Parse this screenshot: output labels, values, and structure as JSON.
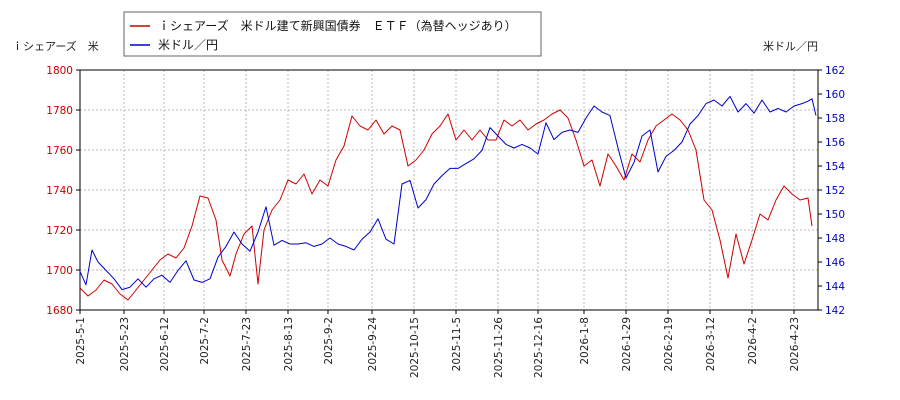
{
  "chart_data": {
    "type": "line",
    "left_axis_label": "ｉシェアーズ　米",
    "right_axis_label": "米ドル／円",
    "y_left": {
      "min": 1680,
      "max": 1800,
      "ticks": [
        1680,
        1700,
        1720,
        1740,
        1760,
        1780,
        1800
      ],
      "color": "#cc0000"
    },
    "y_right": {
      "min": 142,
      "max": 162,
      "ticks": [
        142,
        144,
        146,
        148,
        150,
        152,
        154,
        156,
        158,
        160,
        162
      ],
      "color": "#0000cc"
    },
    "x_range": [
      "2025-05-01",
      "2026-05-05"
    ],
    "x_ticks": [
      "2025-5-1",
      "2025-5-23",
      "2025-6-12",
      "2025-7-2",
      "2025-7-23",
      "2025-8-13",
      "2025-9-2",
      "2025-9-24",
      "2025-10-15",
      "2025-11-5",
      "2025-11-26",
      "2025-12-16",
      "2026-1-8",
      "2026-1-29",
      "2026-2-19",
      "2026-3-12",
      "2026-4-2",
      "2026-4-23"
    ],
    "grid": true,
    "legend_position": "top",
    "series": [
      {
        "name": "ｉシェアーズ　米ドル建て新興国債券　ＥＴＦ（為替ヘッジあり）",
        "axis": "left",
        "color": "#cc0000",
        "points": [
          [
            "2025-05-01",
            1691
          ],
          [
            "2025-05-05",
            1687
          ],
          [
            "2025-05-09",
            1690
          ],
          [
            "2025-05-13",
            1695
          ],
          [
            "2025-05-17",
            1693
          ],
          [
            "2025-05-21",
            1688
          ],
          [
            "2025-05-25",
            1685
          ],
          [
            "2025-05-29",
            1690
          ],
          [
            "2025-06-02",
            1695
          ],
          [
            "2025-06-06",
            1700
          ],
          [
            "2025-06-10",
            1705
          ],
          [
            "2025-06-14",
            1708
          ],
          [
            "2025-06-18",
            1706
          ],
          [
            "2025-06-22",
            1711
          ],
          [
            "2025-06-26",
            1722
          ],
          [
            "2025-06-30",
            1737
          ],
          [
            "2025-07-04",
            1736
          ],
          [
            "2025-07-08",
            1725
          ],
          [
            "2025-07-11",
            1705
          ],
          [
            "2025-07-15",
            1697
          ],
          [
            "2025-07-18",
            1708
          ],
          [
            "2025-07-22",
            1718
          ],
          [
            "2025-07-26",
            1722
          ],
          [
            "2025-07-29",
            1693
          ],
          [
            "2025-08-01",
            1720
          ],
          [
            "2025-08-05",
            1730
          ],
          [
            "2025-08-09",
            1735
          ],
          [
            "2025-08-13",
            1745
          ],
          [
            "2025-08-17",
            1743
          ],
          [
            "2025-08-21",
            1748
          ],
          [
            "2025-08-25",
            1738
          ],
          [
            "2025-08-29",
            1745
          ],
          [
            "2025-09-02",
            1742
          ],
          [
            "2025-09-06",
            1755
          ],
          [
            "2025-09-10",
            1762
          ],
          [
            "2025-09-14",
            1777
          ],
          [
            "2025-09-18",
            1772
          ],
          [
            "2025-09-22",
            1770
          ],
          [
            "2025-09-26",
            1775
          ],
          [
            "2025-09-30",
            1768
          ],
          [
            "2025-10-04",
            1772
          ],
          [
            "2025-10-08",
            1770
          ],
          [
            "2025-10-12",
            1752
          ],
          [
            "2025-10-16",
            1755
          ],
          [
            "2025-10-20",
            1760
          ],
          [
            "2025-10-24",
            1768
          ],
          [
            "2025-10-28",
            1772
          ],
          [
            "2025-11-01",
            1778
          ],
          [
            "2025-11-05",
            1765
          ],
          [
            "2025-11-09",
            1770
          ],
          [
            "2025-11-13",
            1765
          ],
          [
            "2025-11-17",
            1770
          ],
          [
            "2025-11-21",
            1765
          ],
          [
            "2025-11-25",
            1765
          ],
          [
            "2025-11-29",
            1775
          ],
          [
            "2025-12-03",
            1772
          ],
          [
            "2025-12-07",
            1775
          ],
          [
            "2025-12-11",
            1770
          ],
          [
            "2025-12-15",
            1773
          ],
          [
            "2025-12-19",
            1775
          ],
          [
            "2025-12-23",
            1778
          ],
          [
            "2025-12-27",
            1780
          ],
          [
            "2025-12-31",
            1776
          ],
          [
            "2026-01-04",
            1765
          ],
          [
            "2026-01-08",
            1752
          ],
          [
            "2026-01-12",
            1755
          ],
          [
            "2026-01-16",
            1742
          ],
          [
            "2026-01-20",
            1758
          ],
          [
            "2026-01-24",
            1752
          ],
          [
            "2026-01-28",
            1745
          ],
          [
            "2026-02-01",
            1758
          ],
          [
            "2026-02-05",
            1754
          ],
          [
            "2026-02-09",
            1765
          ],
          [
            "2026-02-13",
            1772
          ],
          [
            "2026-02-17",
            1775
          ],
          [
            "2026-02-21",
            1778
          ],
          [
            "2026-02-25",
            1775
          ],
          [
            "2026-03-01",
            1770
          ],
          [
            "2026-03-05",
            1760
          ],
          [
            "2026-03-09",
            1735
          ],
          [
            "2026-03-13",
            1730
          ],
          [
            "2026-03-17",
            1715
          ],
          [
            "2026-03-21",
            1696
          ],
          [
            "2026-03-25",
            1718
          ],
          [
            "2026-03-29",
            1703
          ],
          [
            "2026-04-02",
            1715
          ],
          [
            "2026-04-06",
            1728
          ],
          [
            "2026-04-10",
            1725
          ],
          [
            "2026-04-14",
            1735
          ],
          [
            "2026-04-18",
            1742
          ],
          [
            "2026-04-22",
            1738
          ],
          [
            "2026-04-26",
            1735
          ],
          [
            "2026-04-30",
            1736
          ],
          [
            "2026-05-02",
            1722
          ]
        ]
      },
      {
        "name": "米ドル／円",
        "axis": "right",
        "color": "#0000cc",
        "points": [
          [
            "2025-05-01",
            145.2
          ],
          [
            "2025-05-04",
            144.1
          ],
          [
            "2025-05-07",
            147.0
          ],
          [
            "2025-05-10",
            146.0
          ],
          [
            "2025-05-14",
            145.3
          ],
          [
            "2025-05-18",
            144.6
          ],
          [
            "2025-05-22",
            143.7
          ],
          [
            "2025-05-26",
            143.9
          ],
          [
            "2025-05-30",
            144.6
          ],
          [
            "2025-06-03",
            143.9
          ],
          [
            "2025-06-07",
            144.6
          ],
          [
            "2025-06-11",
            144.9
          ],
          [
            "2025-06-15",
            144.3
          ],
          [
            "2025-06-19",
            145.3
          ],
          [
            "2025-06-23",
            146.1
          ],
          [
            "2025-06-27",
            144.5
          ],
          [
            "2025-07-01",
            144.3
          ],
          [
            "2025-07-05",
            144.6
          ],
          [
            "2025-07-09",
            146.4
          ],
          [
            "2025-07-13",
            147.3
          ],
          [
            "2025-07-17",
            148.5
          ],
          [
            "2025-07-21",
            147.5
          ],
          [
            "2025-07-25",
            146.9
          ],
          [
            "2025-07-29",
            148.5
          ],
          [
            "2025-08-02",
            150.6
          ],
          [
            "2025-08-06",
            147.4
          ],
          [
            "2025-08-10",
            147.8
          ],
          [
            "2025-08-14",
            147.5
          ],
          [
            "2025-08-18",
            147.5
          ],
          [
            "2025-08-22",
            147.6
          ],
          [
            "2025-08-26",
            147.3
          ],
          [
            "2025-08-30",
            147.5
          ],
          [
            "2025-09-03",
            148.0
          ],
          [
            "2025-09-07",
            147.5
          ],
          [
            "2025-09-11",
            147.3
          ],
          [
            "2025-09-15",
            147.0
          ],
          [
            "2025-09-19",
            147.9
          ],
          [
            "2025-09-23",
            148.5
          ],
          [
            "2025-09-27",
            149.6
          ],
          [
            "2025-10-01",
            147.9
          ],
          [
            "2025-10-05",
            147.5
          ],
          [
            "2025-10-09",
            152.5
          ],
          [
            "2025-10-13",
            152.8
          ],
          [
            "2025-10-17",
            150.5
          ],
          [
            "2025-10-21",
            151.2
          ],
          [
            "2025-10-25",
            152.5
          ],
          [
            "2025-10-29",
            153.2
          ],
          [
            "2025-11-02",
            153.8
          ],
          [
            "2025-11-06",
            153.8
          ],
          [
            "2025-11-10",
            154.2
          ],
          [
            "2025-11-14",
            154.6
          ],
          [
            "2025-11-18",
            155.3
          ],
          [
            "2025-11-22",
            157.2
          ],
          [
            "2025-11-26",
            156.5
          ],
          [
            "2025-11-30",
            155.8
          ],
          [
            "2025-12-04",
            155.5
          ],
          [
            "2025-12-08",
            155.8
          ],
          [
            "2025-12-12",
            155.5
          ],
          [
            "2025-12-16",
            155.0
          ],
          [
            "2025-12-20",
            157.6
          ],
          [
            "2025-12-24",
            156.2
          ],
          [
            "2025-12-28",
            156.8
          ],
          [
            "2026-01-01",
            157.0
          ],
          [
            "2026-01-05",
            156.8
          ],
          [
            "2026-01-09",
            158.0
          ],
          [
            "2026-01-13",
            159.0
          ],
          [
            "2026-01-17",
            158.5
          ],
          [
            "2026-01-21",
            158.2
          ],
          [
            "2026-01-25",
            155.5
          ],
          [
            "2026-01-29",
            153.0
          ],
          [
            "2026-02-02",
            154.3
          ],
          [
            "2026-02-06",
            156.5
          ],
          [
            "2026-02-10",
            157.0
          ],
          [
            "2026-02-14",
            153.5
          ],
          [
            "2026-02-18",
            154.8
          ],
          [
            "2026-02-22",
            155.3
          ],
          [
            "2026-02-26",
            156.0
          ],
          [
            "2026-03-02",
            157.5
          ],
          [
            "2026-03-06",
            158.2
          ],
          [
            "2026-03-10",
            159.2
          ],
          [
            "2026-03-14",
            159.5
          ],
          [
            "2026-03-18",
            159.0
          ],
          [
            "2026-03-22",
            159.8
          ],
          [
            "2026-03-26",
            158.5
          ],
          [
            "2026-03-30",
            159.2
          ],
          [
            "2026-04-03",
            158.4
          ],
          [
            "2026-04-07",
            159.5
          ],
          [
            "2026-04-11",
            158.5
          ],
          [
            "2026-04-15",
            158.8
          ],
          [
            "2026-04-19",
            158.5
          ],
          [
            "2026-04-23",
            159.0
          ],
          [
            "2026-04-27",
            159.2
          ],
          [
            "2026-04-30",
            159.4
          ],
          [
            "2026-05-02",
            159.6
          ],
          [
            "2026-05-04",
            158.2
          ]
        ]
      }
    ]
  }
}
